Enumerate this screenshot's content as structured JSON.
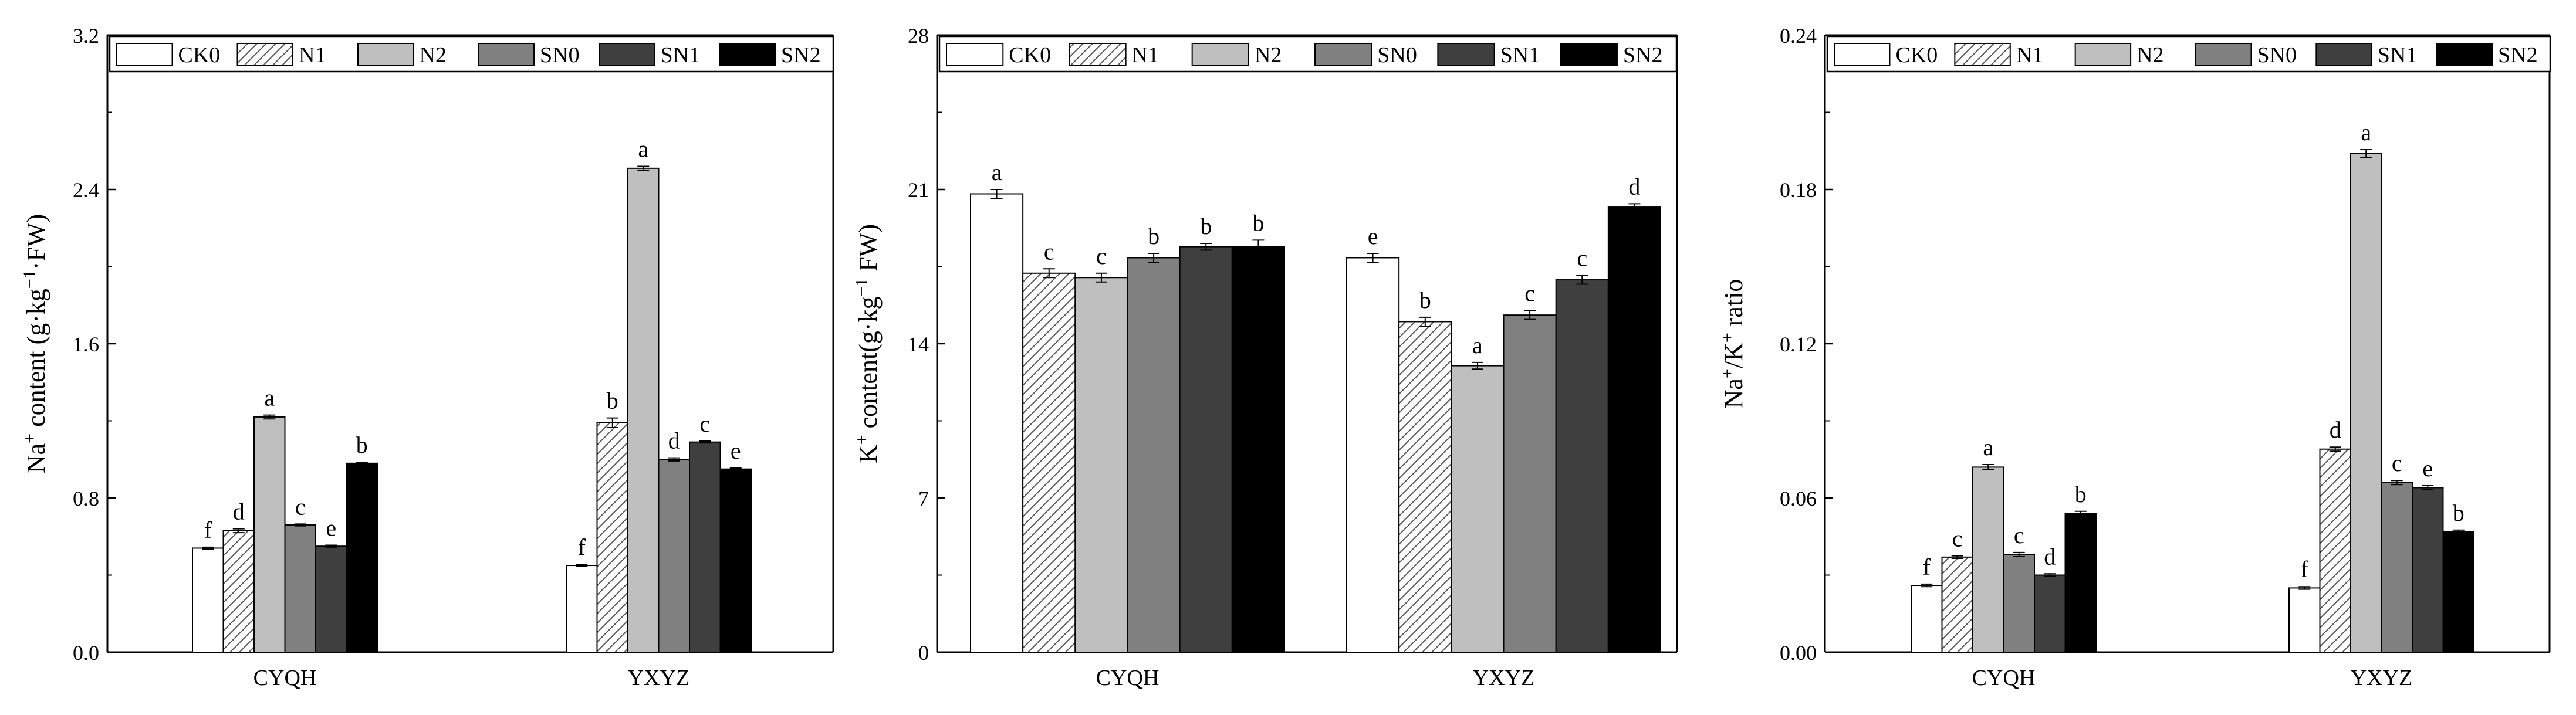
{
  "legend_labels": [
    "CK0",
    "N1",
    "N2",
    "SN0",
    "SN1",
    "SN2"
  ],
  "series_styles": [
    {
      "name": "CK0",
      "fill": "#ffffff",
      "pattern": "none"
    },
    {
      "name": "N1",
      "fill": "#ffffff",
      "pattern": "diagonal-hatch"
    },
    {
      "name": "N2",
      "fill": "#bfbfbf",
      "pattern": "none"
    },
    {
      "name": "SN0",
      "fill": "#808080",
      "pattern": "none"
    },
    {
      "name": "SN1",
      "fill": "#3f3f3f",
      "pattern": "none"
    },
    {
      "name": "SN2",
      "fill": "#000000",
      "pattern": "none"
    }
  ],
  "chart_data": [
    {
      "type": "bar",
      "title": "",
      "xlabel": "",
      "ylabel": "Na+ content (g·kg−1·FW)",
      "ylabel_parts": {
        "pre": "Na",
        "sup1": "+",
        "mid": " content (g·kg",
        "sup2": "−1",
        "post": "·FW)"
      },
      "categories": [
        "CYQH",
        "YXYZ"
      ],
      "ylim": [
        0,
        3.2
      ],
      "yticks": [
        "0.0",
        "0.8",
        "1.6",
        "2.4",
        "3.2"
      ],
      "series": [
        {
          "name": "CK0",
          "values": [
            0.54,
            0.45
          ],
          "errors": [
            0.005,
            0.005
          ],
          "letters": [
            "f",
            "f"
          ]
        },
        {
          "name": "N1",
          "values": [
            0.63,
            1.19
          ],
          "errors": [
            0.01,
            0.025
          ],
          "letters": [
            "d",
            "b"
          ]
        },
        {
          "name": "N2",
          "values": [
            1.22,
            2.51
          ],
          "errors": [
            0.01,
            0.01
          ],
          "letters": [
            "a",
            "a"
          ]
        },
        {
          "name": "SN0",
          "values": [
            0.66,
            1.0
          ],
          "errors": [
            0.005,
            0.008
          ],
          "letters": [
            "c",
            "d"
          ]
        },
        {
          "name": "SN1",
          "values": [
            0.55,
            1.09
          ],
          "errors": [
            0.005,
            0.005
          ],
          "letters": [
            "e",
            "c"
          ]
        },
        {
          "name": "SN2",
          "values": [
            0.98,
            0.95
          ],
          "errors": [
            0.005,
            0.005
          ],
          "letters": [
            "b",
            "e"
          ]
        }
      ]
    },
    {
      "type": "bar",
      "title": "",
      "xlabel": "",
      "ylabel": "K+ content(g·kg−1 FW)",
      "ylabel_parts": {
        "pre": "K",
        "sup1": "+",
        "mid": " content(g·kg",
        "sup2": "−1",
        "post": " FW)"
      },
      "categories": [
        "CYQH",
        "YXYZ"
      ],
      "ylim": [
        0,
        28
      ],
      "yticks": [
        "0",
        "7",
        "14",
        "21",
        "28"
      ],
      "series": [
        {
          "name": "CK0",
          "values": [
            20.8,
            17.9
          ],
          "errors": [
            0.2,
            0.2
          ],
          "letters": [
            "a",
            "e"
          ]
        },
        {
          "name": "N1",
          "values": [
            17.2,
            15.0
          ],
          "errors": [
            0.2,
            0.2
          ],
          "letters": [
            "c",
            "b"
          ]
        },
        {
          "name": "N2",
          "values": [
            17.0,
            13.0
          ],
          "errors": [
            0.2,
            0.15
          ],
          "letters": [
            "c",
            "a"
          ]
        },
        {
          "name": "SN0",
          "values": [
            17.9,
            15.3
          ],
          "errors": [
            0.2,
            0.2
          ],
          "letters": [
            "b",
            "c"
          ]
        },
        {
          "name": "SN1",
          "values": [
            18.4,
            16.9
          ],
          "errors": [
            0.15,
            0.2
          ],
          "letters": [
            "b",
            "c"
          ]
        },
        {
          "name": "SN2",
          "values": [
            18.4,
            20.2
          ],
          "errors": [
            0.3,
            0.15
          ],
          "letters": [
            "b",
            "d"
          ]
        }
      ]
    },
    {
      "type": "bar",
      "title": "",
      "xlabel": "",
      "ylabel": "Na+/K+ ratio",
      "ylabel_parts": {
        "pre": "Na",
        "sup1": "+",
        "mid": "/K",
        "sup2": "+",
        "post": " ratio"
      },
      "categories": [
        "CYQH",
        "YXYZ"
      ],
      "ylim": [
        0,
        0.24
      ],
      "yticks": [
        "0.00",
        "0.06",
        "0.12",
        "0.18",
        "0.24"
      ],
      "series": [
        {
          "name": "CK0",
          "values": [
            0.026,
            0.025
          ],
          "errors": [
            0.0005,
            0.0005
          ],
          "letters": [
            "f",
            "f"
          ]
        },
        {
          "name": "N1",
          "values": [
            0.037,
            0.079
          ],
          "errors": [
            0.0005,
            0.0008
          ],
          "letters": [
            "c",
            "d"
          ]
        },
        {
          "name": "N2",
          "values": [
            0.072,
            0.194
          ],
          "errors": [
            0.001,
            0.0015
          ],
          "letters": [
            "a",
            "a"
          ]
        },
        {
          "name": "SN0",
          "values": [
            0.038,
            0.066
          ],
          "errors": [
            0.0008,
            0.0008
          ],
          "letters": [
            "c",
            "c"
          ]
        },
        {
          "name": "SN1",
          "values": [
            0.03,
            0.064
          ],
          "errors": [
            0.0005,
            0.0008
          ],
          "letters": [
            "d",
            "e"
          ]
        },
        {
          "name": "SN2",
          "values": [
            0.054,
            0.047
          ],
          "errors": [
            0.0008,
            0.0005
          ],
          "letters": [
            "b",
            "b"
          ]
        }
      ]
    }
  ]
}
